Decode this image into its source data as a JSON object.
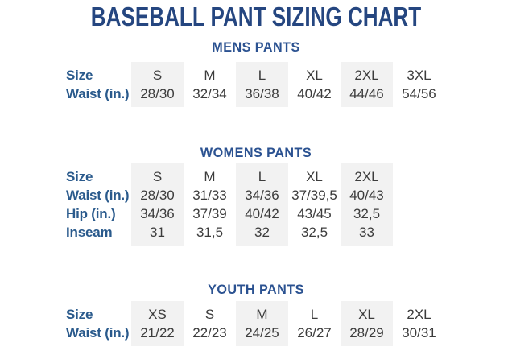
{
  "page": {
    "title": "BASEBALL PANT SIZING CHART"
  },
  "colors": {
    "title": "#254680",
    "section_heading": "#2B5291",
    "row_label": "#2A5A8C",
    "cell_text": "#3C3C3C",
    "shaded_column": "#F2F2F2",
    "background": "#FFFFFF"
  },
  "sections": [
    {
      "heading": "MENS PANTS",
      "columns": [
        "S",
        "M",
        "L",
        "XL",
        "2XL",
        "3XL"
      ],
      "rows": [
        {
          "label": "Size",
          "cells": [
            "S",
            "M",
            "L",
            "XL",
            "2XL",
            "3XL"
          ]
        },
        {
          "label": "Waist (in.)",
          "cells": [
            "28/30",
            "32/34",
            "36/38",
            "40/42",
            "44/46",
            "54/56"
          ]
        }
      ]
    },
    {
      "heading": "WOMENS PANTS",
      "columns": [
        "S",
        "M",
        "L",
        "XL",
        "2XL"
      ],
      "rows": [
        {
          "label": "Size",
          "cells": [
            "S",
            "M",
            "L",
            "XL",
            "2XL"
          ]
        },
        {
          "label": "Waist (in.)",
          "cells": [
            "28/30",
            "31/33",
            "34/36",
            "37/39,5",
            "40/43"
          ]
        },
        {
          "label": "Hip (in.)",
          "cells": [
            "34/36",
            "37/39",
            "40/42",
            "43/45",
            "32,5"
          ]
        },
        {
          "label": "Inseam",
          "cells": [
            "31",
            "31,5",
            "32",
            "32,5",
            "33"
          ]
        }
      ]
    },
    {
      "heading": "YOUTH PANTS",
      "columns": [
        "XS",
        "S",
        "M",
        "L",
        "XL",
        "2XL"
      ],
      "rows": [
        {
          "label": "Size",
          "cells": [
            "XS",
            "S",
            "M",
            "L",
            "XL",
            "2XL"
          ]
        },
        {
          "label": "Waist (in.)",
          "cells": [
            "21/22",
            "22/23",
            "24/25",
            "26/27",
            "28/29",
            "30/31"
          ]
        }
      ]
    }
  ]
}
